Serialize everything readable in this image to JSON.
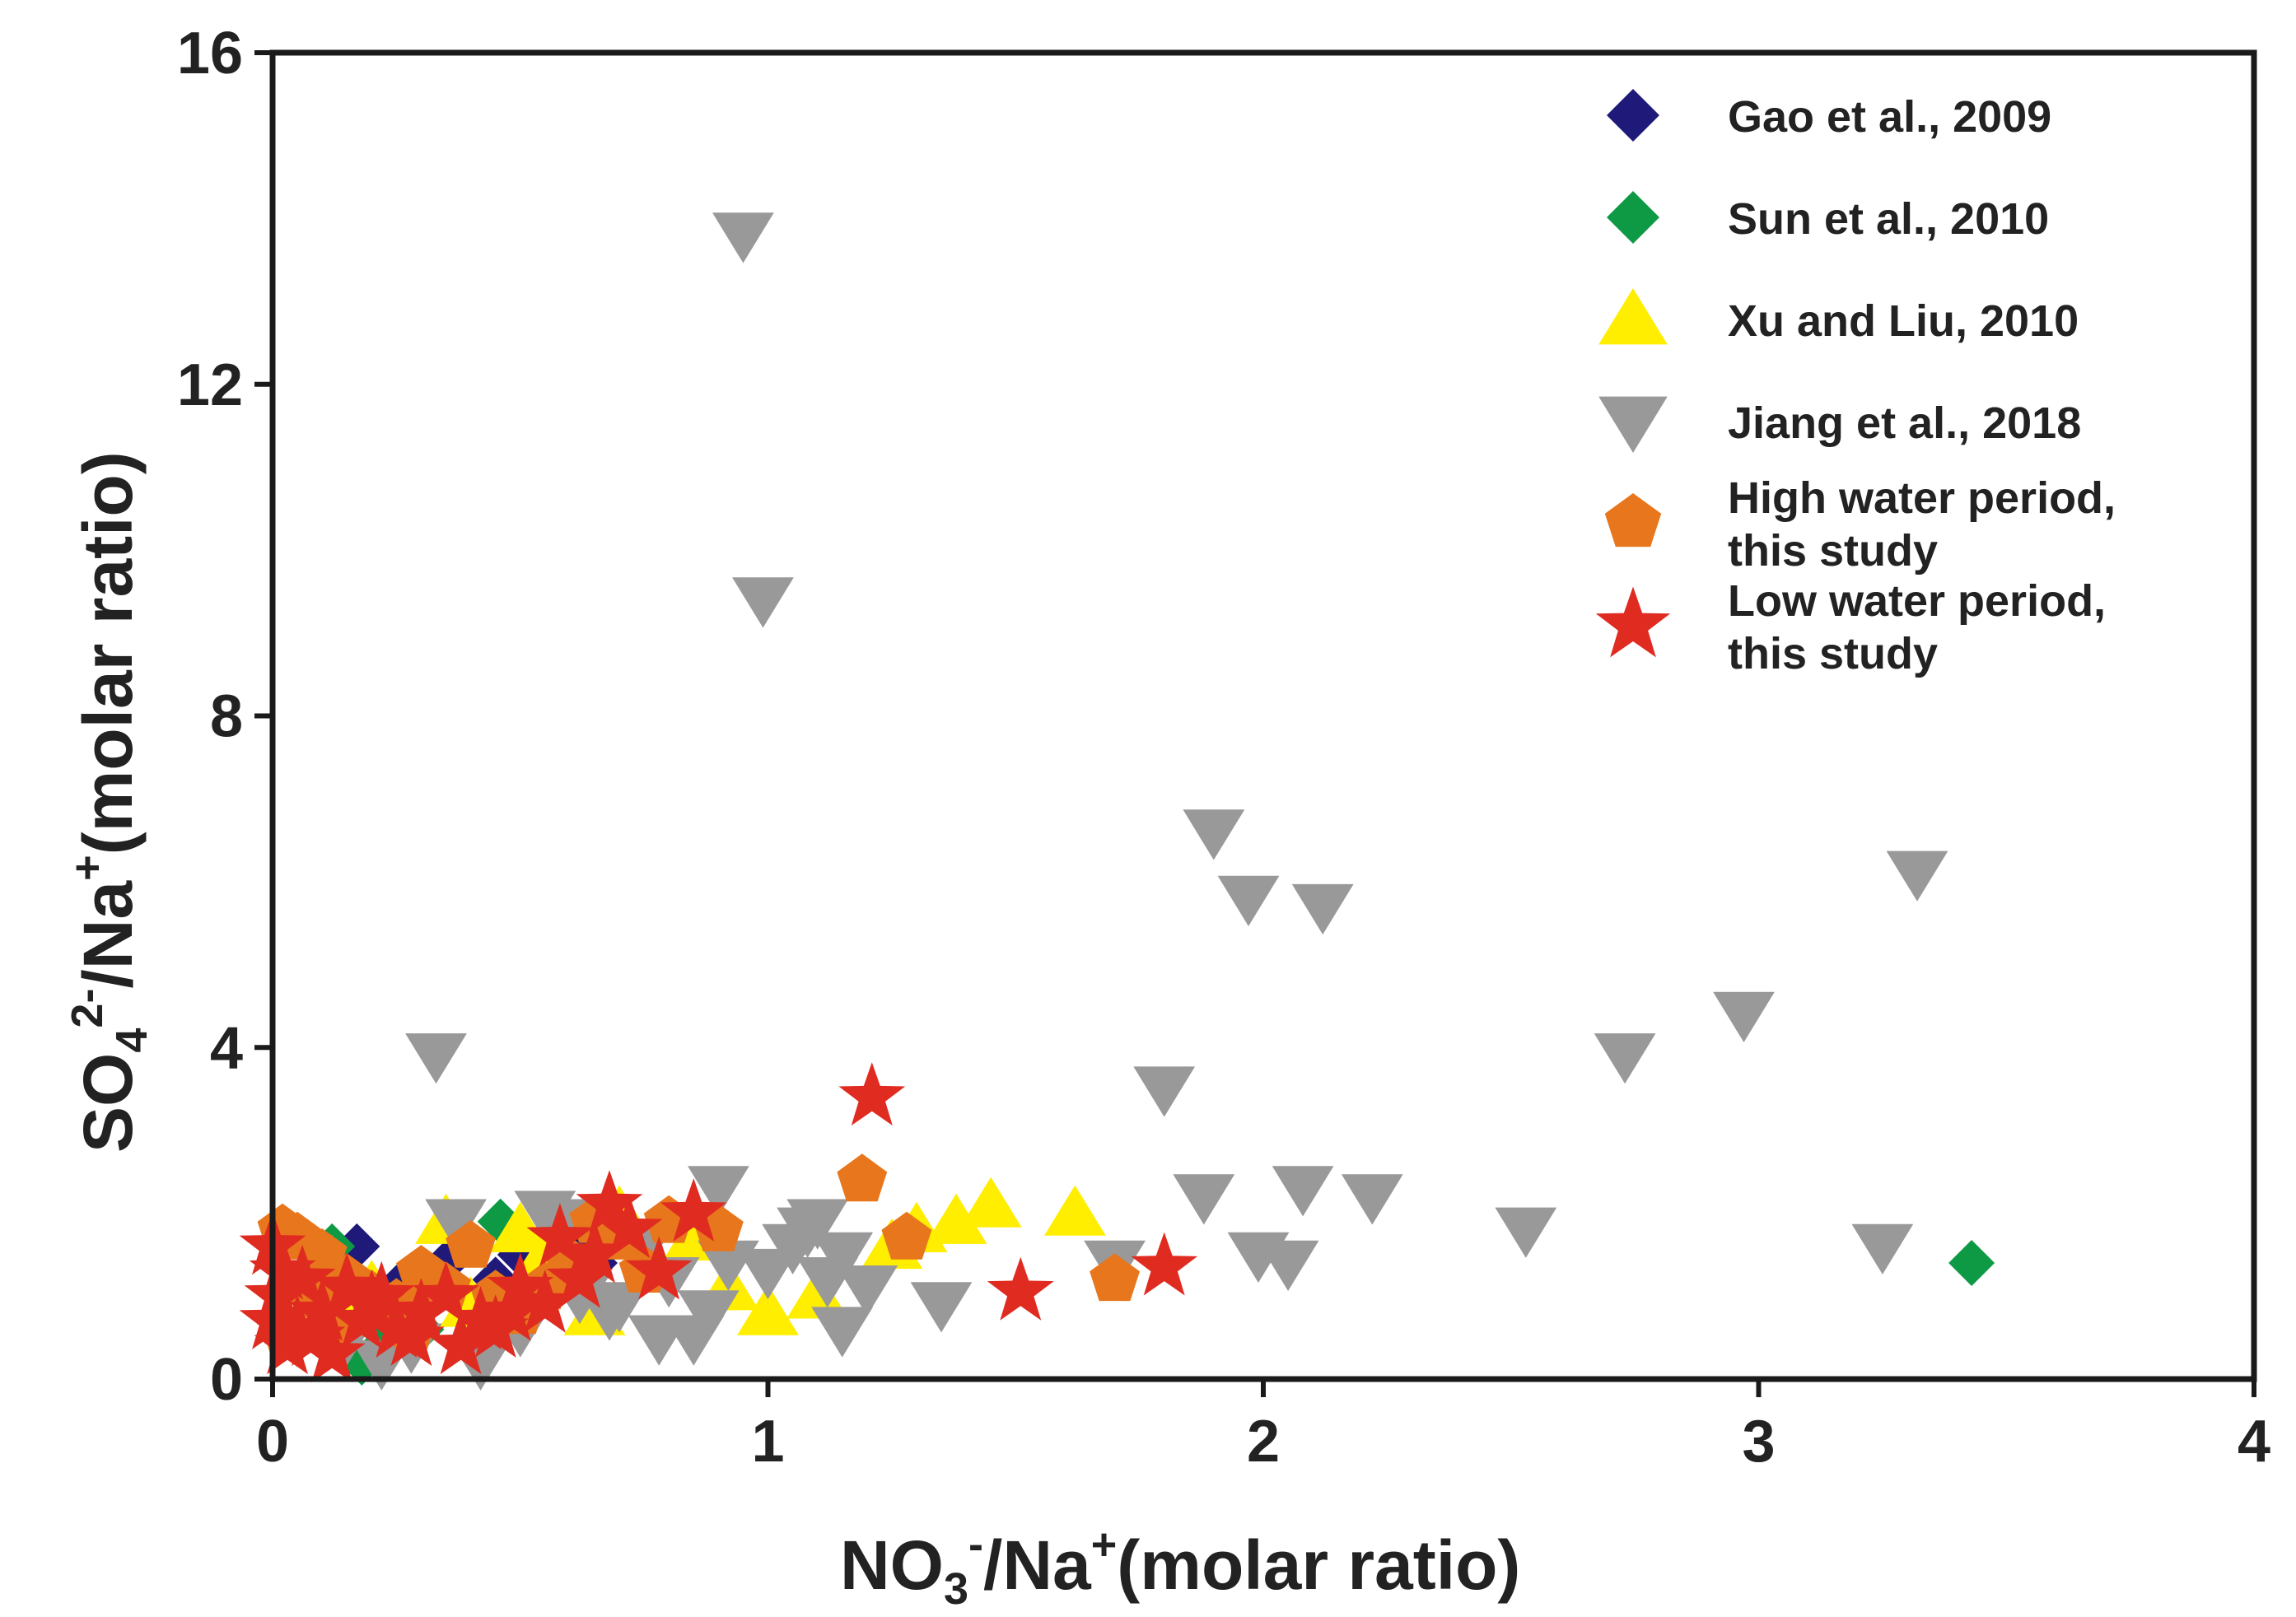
{
  "chart_data": {
    "type": "scatter",
    "title": "",
    "xlabel": {
      "base": "NO",
      "sub": "3",
      "sup": "-",
      "rest": "/Na",
      "sup2": "+",
      "tail": "(molar ratio)"
    },
    "ylabel": {
      "base": "SO",
      "sub": "4",
      "sup": "2-",
      "rest": "/Na",
      "sup2": "+",
      "tail": "(molar ratio)"
    },
    "xlim": [
      0,
      4
    ],
    "ylim": [
      0,
      16
    ],
    "xticks": [
      "0",
      "1",
      "2",
      "3",
      "4"
    ],
    "yticks": [
      "0",
      "4",
      "8",
      "12",
      "16"
    ],
    "grid": false,
    "legend_position": "top-right",
    "series": [
      {
        "name": "Gao et al., 2009",
        "marker": "diamond",
        "color": "#1f1a7a",
        "points": [
          [
            0.17,
            1.6
          ],
          [
            0.5,
            1.5
          ],
          [
            0.55,
            1.3
          ],
          [
            0.6,
            1.6
          ],
          [
            0.65,
            1.4
          ],
          [
            0.45,
            1.2
          ],
          [
            0.35,
            1.4
          ],
          [
            0.25,
            1.1
          ]
        ]
      },
      {
        "name": "Sun et al., 2010",
        "marker": "diamond",
        "color": "#0e9a44",
        "points": [
          [
            3.43,
            1.4
          ],
          [
            0.46,
            1.9
          ],
          [
            0.12,
            1.6
          ],
          [
            0.18,
            0.2
          ],
          [
            0.5,
            0.9
          ],
          [
            0.3,
            0.6
          ],
          [
            0.22,
            0.4
          ]
        ]
      },
      {
        "name": "Xu and Liu, 2010",
        "marker": "triangle-up",
        "color": "#ffee00",
        "points": [
          [
            0.2,
            1.1
          ],
          [
            0.35,
            1.9
          ],
          [
            0.5,
            1.8
          ],
          [
            0.7,
            2.0
          ],
          [
            0.85,
            1.7
          ],
          [
            1.0,
            0.8
          ],
          [
            1.1,
            1.0
          ],
          [
            1.3,
            1.8
          ],
          [
            1.38,
            1.9
          ],
          [
            1.45,
            2.1
          ],
          [
            1.62,
            2.0
          ],
          [
            1.25,
            1.6
          ],
          [
            0.65,
            0.8
          ],
          [
            0.4,
            0.9
          ],
          [
            0.55,
            1.5
          ],
          [
            0.3,
            1.2
          ],
          [
            0.15,
            0.9
          ],
          [
            0.92,
            1.1
          ],
          [
            0.12,
            1.4
          ]
        ]
      },
      {
        "name": "Jiang et al., 2018",
        "marker": "triangle-down",
        "color": "#999999",
        "points": [
          [
            0.95,
            13.8
          ],
          [
            0.99,
            9.4
          ],
          [
            0.33,
            3.9
          ],
          [
            1.9,
            6.6
          ],
          [
            1.97,
            5.8
          ],
          [
            2.12,
            5.7
          ],
          [
            3.32,
            6.1
          ],
          [
            2.97,
            4.4
          ],
          [
            2.73,
            3.9
          ],
          [
            1.8,
            3.5
          ],
          [
            1.88,
            2.2
          ],
          [
            2.08,
            2.3
          ],
          [
            2.22,
            2.2
          ],
          [
            2.53,
            1.8
          ],
          [
            3.25,
            1.6
          ],
          [
            1.99,
            1.5
          ],
          [
            2.05,
            1.4
          ],
          [
            1.35,
            0.9
          ],
          [
            1.15,
            0.6
          ],
          [
            1.1,
            1.9
          ],
          [
            1.15,
            1.5
          ],
          [
            1.12,
            1.2
          ],
          [
            1.0,
            1.3
          ],
          [
            0.9,
            2.3
          ],
          [
            0.92,
            1.4
          ],
          [
            0.85,
            0.5
          ],
          [
            0.78,
            0.5
          ],
          [
            0.7,
            0.9
          ],
          [
            0.6,
            1.9
          ],
          [
            0.55,
            2.0
          ],
          [
            0.37,
            1.9
          ],
          [
            0.28,
            0.4
          ],
          [
            0.22,
            0.2
          ],
          [
            0.42,
            0.2
          ],
          [
            0.45,
            0.5
          ],
          [
            0.5,
            0.6
          ],
          [
            0.62,
            1.0
          ],
          [
            0.68,
            0.8
          ],
          [
            0.88,
            0.8
          ],
          [
            1.05,
            1.6
          ],
          [
            1.08,
            1.8
          ],
          [
            1.2,
            1.1
          ],
          [
            1.7,
            1.4
          ],
          [
            0.15,
            0.5
          ],
          [
            0.3,
            0.8
          ],
          [
            0.8,
            1.2
          ],
          [
            0.75,
            1.6
          ]
        ]
      },
      {
        "name": "High water period,\nthis study",
        "marker": "pentagon",
        "color": "#e8761c",
        "points": [
          [
            1.19,
            2.4
          ],
          [
            1.28,
            1.7
          ],
          [
            1.7,
            1.2
          ],
          [
            0.9,
            1.8
          ],
          [
            0.8,
            1.9
          ],
          [
            0.02,
            1.8
          ],
          [
            0.05,
            1.7
          ],
          [
            0.1,
            1.5
          ],
          [
            0.15,
            1.2
          ],
          [
            0.2,
            1.0
          ],
          [
            0.25,
            0.9
          ],
          [
            0.3,
            1.3
          ],
          [
            0.35,
            1.1
          ],
          [
            0.4,
            1.6
          ],
          [
            0.45,
            1.0
          ],
          [
            0.5,
            0.8
          ],
          [
            0.6,
            1.4
          ],
          [
            0.7,
            1.7
          ],
          [
            0.75,
            1.3
          ],
          [
            0.08,
            1.0
          ],
          [
            0.12,
            0.6
          ],
          [
            0.03,
            0.5
          ],
          [
            0.28,
            0.6
          ],
          [
            0.55,
            1.1
          ],
          [
            0.65,
            1.9
          ]
        ]
      },
      {
        "name": "Low water period,\nthis study",
        "marker": "star",
        "color": "#e02b20",
        "points": [
          [
            1.21,
            3.4
          ],
          [
            1.51,
            1.05
          ],
          [
            1.8,
            1.35
          ],
          [
            0.85,
            2.0
          ],
          [
            0.68,
            2.1
          ],
          [
            0.72,
            1.8
          ],
          [
            0.58,
            1.7
          ],
          [
            0.62,
            1.2
          ],
          [
            0.78,
            1.3
          ],
          [
            0.55,
            0.9
          ],
          [
            0.48,
            0.8
          ],
          [
            0.42,
            0.7
          ],
          [
            0.35,
            1.0
          ],
          [
            0.3,
            0.8
          ],
          [
            0.25,
            0.6
          ],
          [
            0.2,
            0.9
          ],
          [
            0.15,
            1.1
          ],
          [
            0.1,
            0.8
          ],
          [
            0.05,
            0.6
          ],
          [
            0.02,
            1.3
          ],
          [
            0.01,
            1.0
          ],
          [
            0.03,
            0.4
          ],
          [
            0.08,
            0.5
          ],
          [
            0.12,
            0.3
          ],
          [
            0.18,
            0.7
          ],
          [
            0.22,
            1.0
          ],
          [
            0.28,
            0.5
          ],
          [
            0.38,
            0.4
          ],
          [
            0.45,
            0.6
          ],
          [
            0.5,
            1.1
          ],
          [
            0.65,
            1.5
          ],
          [
            0.0,
            0.7
          ],
          [
            0.0,
            1.6
          ],
          [
            0.06,
            1.2
          ]
        ]
      }
    ]
  }
}
